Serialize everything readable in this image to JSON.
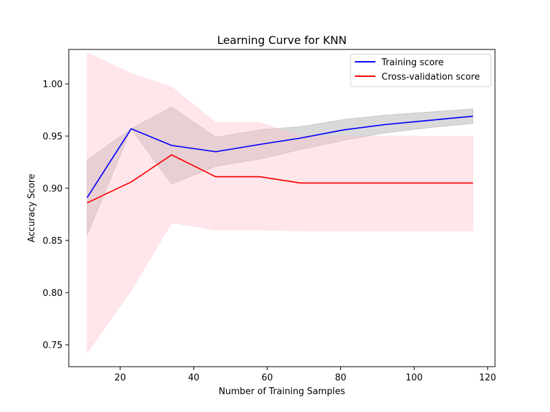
{
  "chart_data": {
    "type": "line",
    "title": "Learning Curve for KNN",
    "xlabel": "Number of Training Samples",
    "ylabel": "Accuracy Score",
    "xlim": [
      6,
      122
    ],
    "ylim": [
      0.729,
      1.033
    ],
    "xticks": [
      20,
      40,
      60,
      80,
      100,
      120
    ],
    "yticks": [
      0.75,
      0.8,
      0.85,
      0.9,
      0.95,
      1.0
    ],
    "xtick_labels": [
      "20",
      "40",
      "60",
      "80",
      "100",
      "120"
    ],
    "ytick_labels": [
      "0.75",
      "0.80",
      "0.85",
      "0.90",
      "0.95",
      "1.00"
    ],
    "grid": false,
    "legend_position": "top-right",
    "x": [
      11,
      23,
      34,
      46,
      58,
      69,
      81,
      92,
      104,
      116
    ],
    "series": [
      {
        "name": "Training score",
        "color": "#0000ff",
        "band_color": "#808080",
        "values": [
          0.891,
          0.957,
          0.941,
          0.935,
          0.942,
          0.948,
          0.956,
          0.961,
          0.965,
          0.969
        ],
        "lower": [
          0.855,
          0.957,
          0.904,
          0.921,
          0.928,
          0.937,
          0.946,
          0.953,
          0.958,
          0.962
        ],
        "upper": [
          0.927,
          0.957,
          0.978,
          0.949,
          0.956,
          0.959,
          0.966,
          0.97,
          0.973,
          0.976
        ]
      },
      {
        "name": "Cross-validation score",
        "color": "#ff0000",
        "band_color": "#ffc0cb",
        "values": [
          0.886,
          0.906,
          0.932,
          0.911,
          0.911,
          0.905,
          0.905,
          0.905,
          0.905,
          0.905
        ],
        "lower": [
          0.742,
          0.802,
          0.867,
          0.86,
          0.86,
          0.859,
          0.859,
          0.859,
          0.859,
          0.859
        ],
        "upper": [
          1.03,
          1.01,
          0.997,
          0.963,
          0.963,
          0.95,
          0.95,
          0.95,
          0.95,
          0.95
        ]
      }
    ]
  }
}
